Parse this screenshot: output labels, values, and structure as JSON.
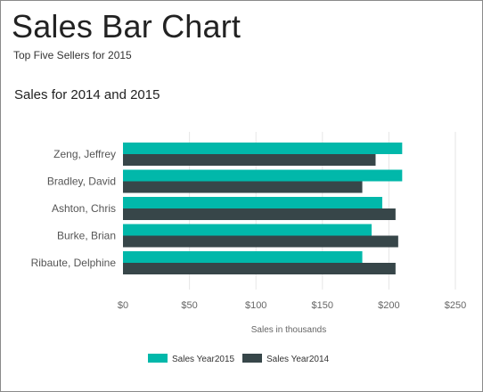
{
  "report": {
    "title": "Sales Bar Chart",
    "subtitle": "Top Five Sellers for 2015"
  },
  "chart_data": {
    "type": "bar",
    "orientation": "horizontal",
    "title": "Sales for 2014 and 2015",
    "xlabel": "Sales in thousands",
    "ylabel": "",
    "xlim": [
      0,
      250
    ],
    "ticks": [
      0,
      50,
      100,
      150,
      200,
      250
    ],
    "tick_labels": [
      "$0",
      "$50",
      "$100",
      "$150",
      "$200",
      "$250"
    ],
    "categories": [
      "Zeng, Jeffrey",
      "Bradley, David",
      "Ashton, Chris",
      "Burke, Brian",
      "Ribaute, Delphine"
    ],
    "series": [
      {
        "name": "Sales Year2015",
        "color": "#01b8aa",
        "values": [
          210,
          210,
          195,
          187,
          180
        ]
      },
      {
        "name": "Sales Year2014",
        "color": "#374649",
        "values": [
          190,
          180,
          205,
          207,
          205
        ]
      }
    ],
    "grid": true,
    "legend_position": "bottom-center"
  }
}
